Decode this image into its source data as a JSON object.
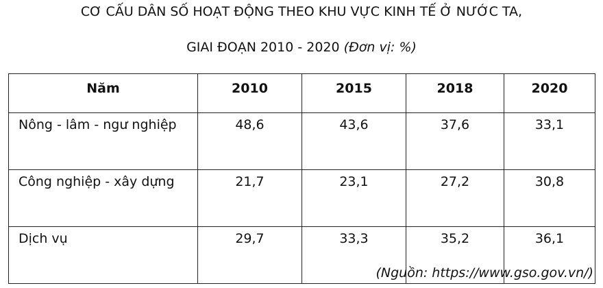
{
  "header": {
    "title": "CƠ CẤU DÂN SỐ HOẠT ĐỘNG THEO KHU VỰC KINH TẾ Ở NƯỚC TA,",
    "subtitle": "GIAI ĐOẠN 2010 - 2020",
    "unit": "(Đơn vị: %)"
  },
  "table": {
    "columns": [
      "Năm",
      "2010",
      "2015",
      "2018",
      "2020"
    ],
    "rows": [
      [
        "Nông - lâm - ngư nghiệp",
        "48,6",
        "43,6",
        "37,6",
        "33,1"
      ],
      [
        "Công nghiệp - xây dựng",
        "21,7",
        "23,1",
        "27,2",
        "30,8"
      ],
      [
        "Dịch vụ",
        "29,7",
        "33,3",
        "35,2",
        "36,1"
      ]
    ]
  },
  "footer": {
    "source": "(Nguồn: https://www.gso.gov.vn/)"
  }
}
